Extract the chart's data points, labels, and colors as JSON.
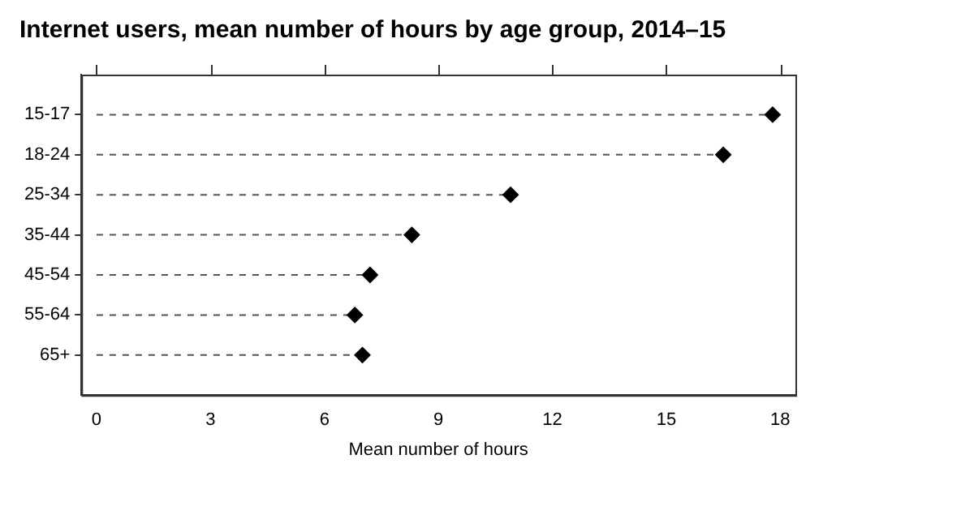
{
  "chart_data": {
    "type": "lollipop",
    "orientation": "horizontal",
    "title": "Internet users, mean number of hours by age group, 2014–15",
    "xlabel": "Mean number of hours",
    "categories": [
      "15-17",
      "18-24",
      "25-34",
      "35-44",
      "45-54",
      "55-64",
      "65+"
    ],
    "values": [
      17.8,
      16.5,
      10.9,
      8.3,
      7.2,
      6.8,
      7.0
    ],
    "color": "#000000",
    "marker": "diamond",
    "line_style": "dashed",
    "xlim": [
      -0.4,
      18.4
    ],
    "xticks": [
      0,
      3,
      6,
      9,
      12,
      15,
      18
    ]
  }
}
